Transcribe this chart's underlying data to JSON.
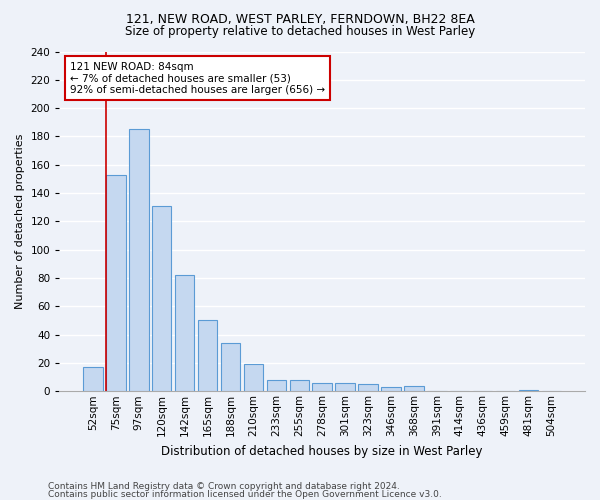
{
  "title1": "121, NEW ROAD, WEST PARLEY, FERNDOWN, BH22 8EA",
  "title2": "Size of property relative to detached houses in West Parley",
  "xlabel": "Distribution of detached houses by size in West Parley",
  "ylabel": "Number of detached properties",
  "categories": [
    "52sqm",
    "75sqm",
    "97sqm",
    "120sqm",
    "142sqm",
    "165sqm",
    "188sqm",
    "210sqm",
    "233sqm",
    "255sqm",
    "278sqm",
    "301sqm",
    "323sqm",
    "346sqm",
    "368sqm",
    "391sqm",
    "414sqm",
    "436sqm",
    "459sqm",
    "481sqm",
    "504sqm"
  ],
  "values": [
    17,
    153,
    185,
    131,
    82,
    50,
    34,
    19,
    8,
    8,
    6,
    6,
    5,
    3,
    4,
    0,
    0,
    0,
    0,
    1,
    0
  ],
  "bar_color": "#c5d8f0",
  "bar_edge_color": "#5b9bd5",
  "vline_color": "#cc0000",
  "annotation_text": "121 NEW ROAD: 84sqm\n← 7% of detached houses are smaller (53)\n92% of semi-detached houses are larger (656) →",
  "annotation_box_color": "#ffffff",
  "annotation_box_edge": "#cc0000",
  "ylim": [
    0,
    240
  ],
  "yticks": [
    0,
    20,
    40,
    60,
    80,
    100,
    120,
    140,
    160,
    180,
    200,
    220,
    240
  ],
  "footer1": "Contains HM Land Registry data © Crown copyright and database right 2024.",
  "footer2": "Contains public sector information licensed under the Open Government Licence v3.0.",
  "background_color": "#eef2f9",
  "grid_color": "#ffffff",
  "title1_fontsize": 9,
  "title2_fontsize": 8.5,
  "ylabel_fontsize": 8,
  "xlabel_fontsize": 8.5,
  "tick_fontsize": 7.5,
  "footer_fontsize": 6.5
}
